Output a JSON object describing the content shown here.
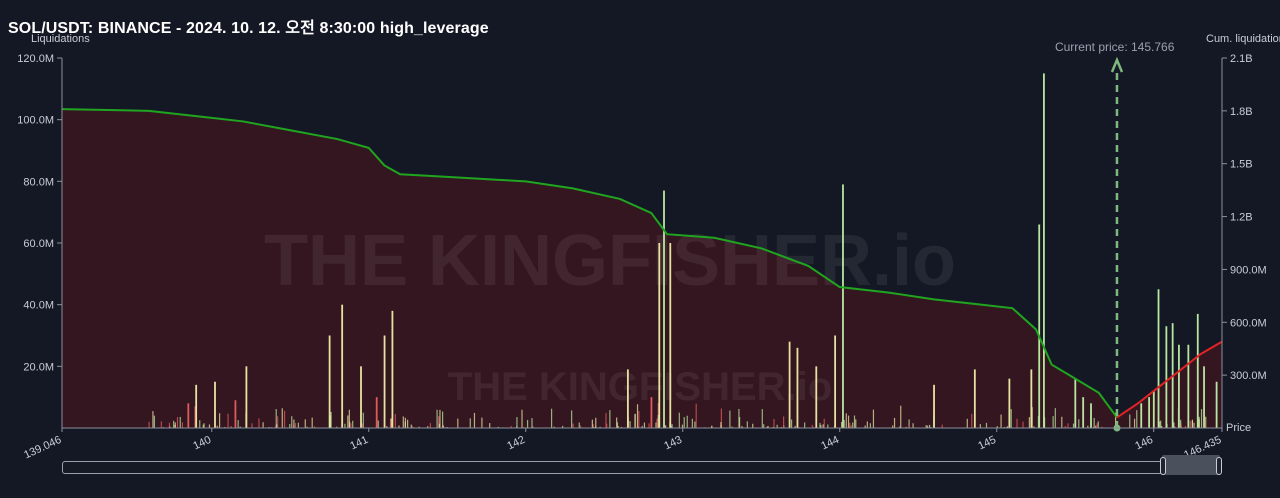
{
  "header": {
    "title": "SOL/USDT: BINANCE - 2024. 10. 12. 오전 8:30:00 high_leverage"
  },
  "watermark": {
    "brand": "THE KINGFISHER.io"
  },
  "colors": {
    "background": "#141824",
    "cum_line_left": "#1fa51f",
    "cum_line_right": "#e02424",
    "area_fill": "#3a1620",
    "bar_green": "#b8e6a0",
    "bar_yellow": "#e8e2a0",
    "bar_red": "#e05a5a",
    "current_price_marker": "#7fb87f"
  },
  "chart_data": {
    "type": "bar",
    "title": "SOL/USDT: BINANCE - 2024. 10. 12. 오전 8:30:00 high_leverage",
    "ylabel": "Liquidations",
    "y2label": "Cum. liquidations",
    "xlabel": "Price",
    "xlim": [
      139.046,
      146.435
    ],
    "ylim": [
      0,
      120000000
    ],
    "y2lim": [
      0,
      2100000000
    ],
    "x_ticks": [
      "139.046",
      "140",
      "141",
      "142",
      "143",
      "144",
      "145",
      "146",
      "146.435"
    ],
    "x_tick_values": [
      139.046,
      140,
      141,
      142,
      143,
      144,
      145,
      146,
      146.435
    ],
    "y_ticks": [
      "120.0M",
      "100.0M",
      "80.0M",
      "60.0M",
      "40.0M",
      "20.0M"
    ],
    "y_tick_values": [
      120000000,
      100000000,
      80000000,
      60000000,
      40000000,
      20000000
    ],
    "y2_ticks": [
      "2.1B",
      "1.8B",
      "1.5B",
      "1.2B",
      "900.0M",
      "600.0M",
      "300.0M"
    ],
    "y2_tick_values": [
      2100000000,
      1800000000,
      1500000000,
      1200000000,
      900000000,
      600000000,
      300000000
    ],
    "current_price": {
      "label": "Current price: 145.766",
      "value": 145.766
    },
    "bars": [
      {
        "x": 139.9,
        "y": 14000000,
        "c": "y"
      },
      {
        "x": 140.02,
        "y": 15000000,
        "c": "y"
      },
      {
        "x": 140.22,
        "y": 20000000,
        "c": "y"
      },
      {
        "x": 139.85,
        "y": 8000000,
        "c": "r"
      },
      {
        "x": 140.15,
        "y": 9000000,
        "c": "r"
      },
      {
        "x": 140.75,
        "y": 30000000,
        "c": "y"
      },
      {
        "x": 140.83,
        "y": 40000000,
        "c": "y"
      },
      {
        "x": 140.95,
        "y": 20000000,
        "c": "y"
      },
      {
        "x": 141.1,
        "y": 30000000,
        "c": "y"
      },
      {
        "x": 141.15,
        "y": 38000000,
        "c": "y"
      },
      {
        "x": 141.05,
        "y": 10000000,
        "c": "r"
      },
      {
        "x": 142.65,
        "y": 19000000,
        "c": "y"
      },
      {
        "x": 142.85,
        "y": 60000000,
        "c": "y"
      },
      {
        "x": 142.88,
        "y": 77000000,
        "c": "g"
      },
      {
        "x": 142.92,
        "y": 60000000,
        "c": "y"
      },
      {
        "x": 142.8,
        "y": 10000000,
        "c": "r"
      },
      {
        "x": 143.68,
        "y": 28000000,
        "c": "y"
      },
      {
        "x": 143.73,
        "y": 26000000,
        "c": "y"
      },
      {
        "x": 143.85,
        "y": 20000000,
        "c": "y"
      },
      {
        "x": 143.97,
        "y": 30000000,
        "c": "y"
      },
      {
        "x": 144.02,
        "y": 79000000,
        "c": "g"
      },
      {
        "x": 144.6,
        "y": 14000000,
        "c": "y"
      },
      {
        "x": 144.86,
        "y": 19000000,
        "c": "y"
      },
      {
        "x": 145.08,
        "y": 16000000,
        "c": "y"
      },
      {
        "x": 145.22,
        "y": 19000000,
        "c": "y"
      },
      {
        "x": 145.27,
        "y": 66000000,
        "c": "g"
      },
      {
        "x": 145.3,
        "y": 115000000,
        "c": "g"
      },
      {
        "x": 145.5,
        "y": 16000000,
        "c": "g"
      },
      {
        "x": 145.55,
        "y": 10000000,
        "c": "g"
      },
      {
        "x": 145.6,
        "y": 8000000,
        "c": "g"
      },
      {
        "x": 146.03,
        "y": 45000000,
        "c": "g"
      },
      {
        "x": 146.08,
        "y": 33000000,
        "c": "g"
      },
      {
        "x": 146.12,
        "y": 34000000,
        "c": "g"
      },
      {
        "x": 146.16,
        "y": 27000000,
        "c": "g"
      },
      {
        "x": 146.22,
        "y": 27000000,
        "c": "g"
      },
      {
        "x": 146.28,
        "y": 37000000,
        "c": "g"
      },
      {
        "x": 146.32,
        "y": 20000000,
        "c": "g"
      },
      {
        "x": 146.4,
        "y": 15000000,
        "c": "g"
      },
      {
        "x": 145.92,
        "y": 8000000,
        "c": "g"
      },
      {
        "x": 145.97,
        "y": 10000000,
        "c": "g"
      },
      {
        "x": 146.0,
        "y": 12000000,
        "c": "g"
      }
    ],
    "cum_series": {
      "name": "Cum. liquidations",
      "x": [
        139.046,
        139.6,
        140.0,
        140.2,
        140.5,
        140.8,
        141.0,
        141.1,
        141.2,
        141.5,
        141.8,
        142.0,
        142.3,
        142.6,
        142.8,
        142.9,
        143.2,
        143.5,
        143.8,
        144.0,
        144.3,
        144.6,
        144.9,
        145.1,
        145.25,
        145.35,
        145.5,
        145.65,
        145.766,
        145.9,
        146.1,
        146.3,
        146.435
      ],
      "y": [
        1810000000,
        1800000000,
        1760000000,
        1740000000,
        1690000000,
        1640000000,
        1590000000,
        1490000000,
        1440000000,
        1425000000,
        1410000000,
        1400000000,
        1360000000,
        1300000000,
        1220000000,
        1100000000,
        1080000000,
        1020000000,
        920000000,
        800000000,
        770000000,
        730000000,
        700000000,
        680000000,
        560000000,
        360000000,
        280000000,
        200000000,
        60000000,
        140000000,
        280000000,
        420000000,
        490000000
      ]
    }
  }
}
